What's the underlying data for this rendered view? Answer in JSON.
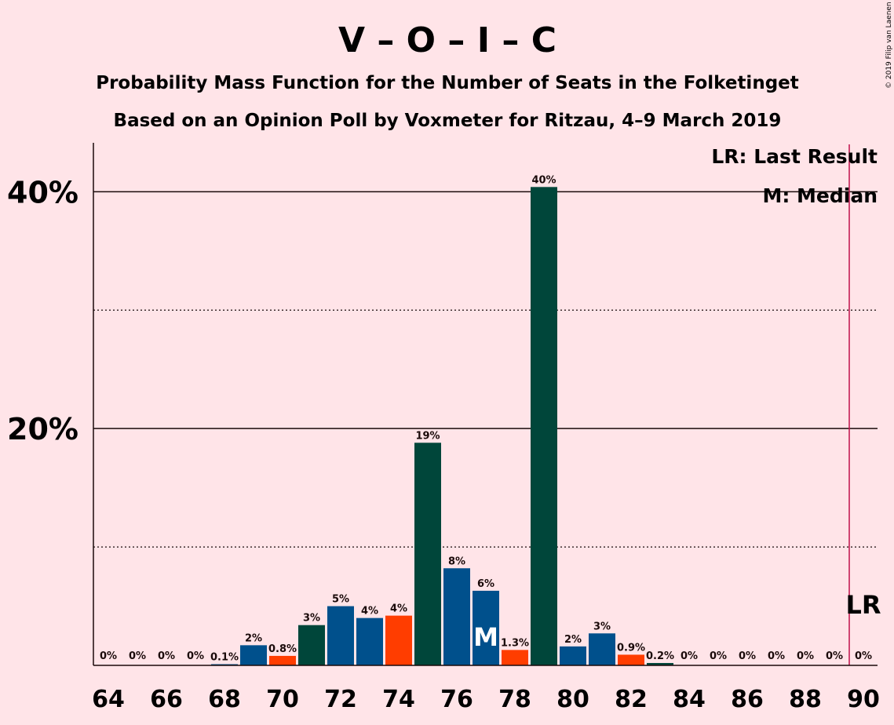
{
  "chart_data": {
    "type": "bar",
    "title": "V – O – I – C",
    "subtitle1": "Probability Mass Function for the Number of Seats in the Folketinget",
    "subtitle2": "Based on an Opinion Poll by Voxmeter for Ritzau, 4–9 March 2019",
    "copyright": "© 2019 Filip van Laenen",
    "legend": {
      "lr": "LR: Last Result",
      "median": "M: Median",
      "placement": "top-right"
    },
    "ylim": [
      0,
      44
    ],
    "yticks": [
      {
        "value": 20,
        "label": "20%"
      },
      {
        "value": 40,
        "label": "40%"
      }
    ],
    "ygrid_dotted": [
      10,
      30
    ],
    "xticks": [
      "64",
      "66",
      "68",
      "70",
      "72",
      "74",
      "76",
      "78",
      "80",
      "82",
      "84",
      "86",
      "88",
      "90"
    ],
    "xlim": [
      63.5,
      90.5
    ],
    "median_seat": 77,
    "median_label": "M",
    "last_result_seat": 89.5,
    "last_result_label": "LR",
    "colors": {
      "background": "#ffe4e8",
      "blue": "#00508c",
      "dark_green": "#00463a",
      "orange": "#ff3d00",
      "lr_line": "#c0104a"
    },
    "bars": [
      {
        "seat": 64,
        "value": 0,
        "label": "0%",
        "color": "blue"
      },
      {
        "seat": 65,
        "value": 0,
        "label": "0%",
        "color": "blue"
      },
      {
        "seat": 66,
        "value": 0,
        "label": "0%",
        "color": "blue"
      },
      {
        "seat": 67,
        "value": 0,
        "label": "0%",
        "color": "blue"
      },
      {
        "seat": 68,
        "value": 0.1,
        "label": "0.1%",
        "color": "blue"
      },
      {
        "seat": 69,
        "value": 1.7,
        "label": "2%",
        "color": "blue"
      },
      {
        "seat": 70,
        "value": 0.8,
        "label": "0.8%",
        "color": "orange"
      },
      {
        "seat": 71,
        "value": 3.4,
        "label": "3%",
        "color": "dark_green"
      },
      {
        "seat": 72,
        "value": 5.0,
        "label": "5%",
        "color": "blue"
      },
      {
        "seat": 73,
        "value": 4.0,
        "label": "4%",
        "color": "blue"
      },
      {
        "seat": 74,
        "value": 4.2,
        "label": "4%",
        "color": "orange"
      },
      {
        "seat": 75,
        "value": 18.8,
        "label": "19%",
        "color": "dark_green"
      },
      {
        "seat": 76,
        "value": 8.2,
        "label": "8%",
        "color": "blue"
      },
      {
        "seat": 77,
        "value": 6.3,
        "label": "6%",
        "color": "blue"
      },
      {
        "seat": 78,
        "value": 1.3,
        "label": "1.3%",
        "color": "orange"
      },
      {
        "seat": 79,
        "value": 40.4,
        "label": "40%",
        "color": "dark_green"
      },
      {
        "seat": 80,
        "value": 1.6,
        "label": "2%",
        "color": "blue"
      },
      {
        "seat": 81,
        "value": 2.7,
        "label": "3%",
        "color": "blue"
      },
      {
        "seat": 82,
        "value": 0.9,
        "label": "0.9%",
        "color": "orange"
      },
      {
        "seat": 83,
        "value": 0.2,
        "label": "0.2%",
        "color": "dark_green"
      },
      {
        "seat": 84,
        "value": 0,
        "label": "0%",
        "color": "blue"
      },
      {
        "seat": 85,
        "value": 0,
        "label": "0%",
        "color": "blue"
      },
      {
        "seat": 86,
        "value": 0,
        "label": "0%",
        "color": "blue"
      },
      {
        "seat": 87,
        "value": 0,
        "label": "0%",
        "color": "blue"
      },
      {
        "seat": 88,
        "value": 0,
        "label": "0%",
        "color": "blue"
      },
      {
        "seat": 89,
        "value": 0,
        "label": "0%",
        "color": "blue"
      },
      {
        "seat": 90,
        "value": 0,
        "label": "0%",
        "color": "blue"
      }
    ]
  }
}
